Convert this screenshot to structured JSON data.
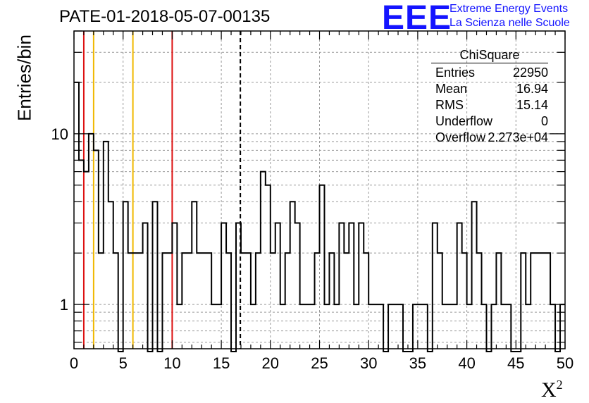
{
  "header": {
    "title": "PATE-01-2018-05-07-00135",
    "logo": "EEE",
    "org_line1": "Extreme Energy Events",
    "org_line2": "La Scienza nelle Scuole"
  },
  "stats_box": {
    "title": "ChiSquare",
    "rows": [
      {
        "label": "Entries",
        "value": "22950"
      },
      {
        "label": "Mean",
        "value": "16.94"
      },
      {
        "label": "RMS",
        "value": "15.14"
      },
      {
        "label": "Underflow",
        "value": "0"
      },
      {
        "label": "Overflow",
        "value": "2.273e+04"
      }
    ]
  },
  "colors": {
    "red_line": "#dd1111",
    "yellow_line": "#f0b800",
    "histogram": "#000000",
    "grid": "#9a9a9a",
    "logo": "#1414ff"
  },
  "chart_data": {
    "type": "bar",
    "histogram_style": "step",
    "title": "PATE-01-2018-05-07-00135",
    "xlabel": "X²",
    "ylabel": "Entries/bin",
    "xlim": [
      0,
      50
    ],
    "ylim": [
      0.55,
      40
    ],
    "yscale": "log",
    "bin_width": 0.5,
    "grid": true,
    "x_ticks": [
      "0",
      "5",
      "10",
      "15",
      "20",
      "25",
      "30",
      "35",
      "40",
      "45",
      "50"
    ],
    "y_ticks": [
      "1",
      "10"
    ],
    "values": [
      20,
      7,
      6,
      10,
      8,
      2,
      9,
      4,
      2,
      0,
      4,
      2,
      2,
      2,
      3,
      0,
      4,
      0,
      2,
      2,
      3,
      1,
      2,
      2,
      4,
      2,
      2,
      2,
      1,
      1,
      3,
      2,
      0,
      3,
      2,
      2,
      1,
      2,
      6,
      5,
      2,
      3,
      1,
      2,
      4,
      3,
      1,
      1,
      1,
      2,
      5,
      1,
      2,
      1,
      3,
      2,
      3,
      1,
      3,
      2,
      1,
      1,
      1,
      0,
      1,
      1,
      1,
      0,
      0,
      1,
      1,
      1,
      0,
      3,
      2,
      1,
      1,
      1,
      3,
      2,
      1,
      4,
      2,
      1,
      0,
      1,
      2,
      1,
      1,
      0,
      0,
      2,
      1,
      2,
      2,
      2,
      2,
      1,
      0,
      1
    ],
    "vertical_lines": [
      {
        "x": 1,
        "style": "solid",
        "color": "red"
      },
      {
        "x": 2,
        "style": "solid",
        "color": "yellow"
      },
      {
        "x": 6,
        "style": "solid",
        "color": "yellow"
      },
      {
        "x": 10,
        "style": "solid",
        "color": "red"
      },
      {
        "x": 16.94,
        "style": "dashed",
        "color": "black"
      }
    ]
  }
}
